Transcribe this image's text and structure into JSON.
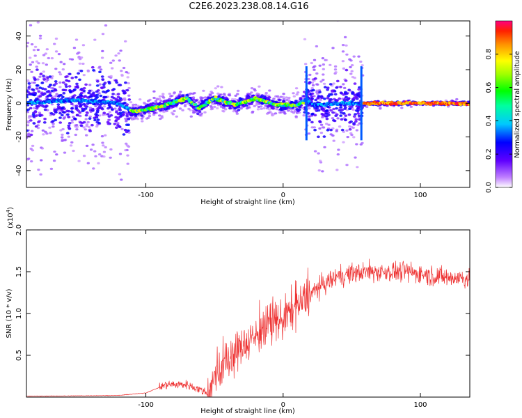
{
  "title": "C2E6.2023.238.08.14.G16",
  "chart_data": [
    {
      "type": "heatmap",
      "xlabel": "Height of straight line (km)",
      "ylabel": "Frequency (Hz)",
      "xlim": [
        -187,
        136
      ],
      "ylim": [
        -50,
        49
      ],
      "x_ticks": [
        "-100",
        "0",
        "100"
      ],
      "y_ticks": [
        "-40",
        "-20",
        "0",
        "20",
        "40"
      ],
      "colorbar": {
        "label": "Normalized spectral amplitude",
        "range": [
          0,
          1
        ],
        "ticks": [
          "0.0",
          "0.2",
          "0.4",
          "0.6",
          "0.8"
        ]
      },
      "ridge": [
        {
          "x": -187,
          "y": 0
        },
        {
          "x": -150,
          "y": 2
        },
        {
          "x": -120,
          "y": 0
        },
        {
          "x": -110,
          "y": -5
        },
        {
          "x": -95,
          "y": -3
        },
        {
          "x": -85,
          "y": -1
        },
        {
          "x": -70,
          "y": 3
        },
        {
          "x": -62,
          "y": -3
        },
        {
          "x": -50,
          "y": 3
        },
        {
          "x": -35,
          "y": -1
        },
        {
          "x": -20,
          "y": 3
        },
        {
          "x": -5,
          "y": -1
        },
        {
          "x": 10,
          "y": -1
        },
        {
          "x": 17,
          "y": 2
        },
        {
          "x": 22,
          "y": -1
        },
        {
          "x": 40,
          "y": 0
        },
        {
          "x": 57,
          "y": 0
        },
        {
          "x": 65,
          "y": 0
        },
        {
          "x": 136,
          "y": 0
        }
      ]
    },
    {
      "type": "line",
      "xlabel": "Height of straight line (km)",
      "ylabel": "SNR (10 * v/v)",
      "y_multiplier": "(x10",
      "y_multiplier_exp": "4",
      "y_multiplier_close": ")",
      "xlim": [
        -187,
        136
      ],
      "ylim": [
        0,
        2.0
      ],
      "x_ticks": [
        "-100",
        "0",
        "100"
      ],
      "y_ticks": [
        "0.5",
        "1.0",
        "1.5",
        "2.0"
      ],
      "series": [
        {
          "color": "#ee3333",
          "envelope": [
            {
              "x": -187,
              "y": 0.01
            },
            {
              "x": -120,
              "y": 0.02
            },
            {
              "x": -100,
              "y": 0.05
            },
            {
              "x": -85,
              "y": 0.15
            },
            {
              "x": -70,
              "y": 0.15
            },
            {
              "x": -55,
              "y": 0.05
            },
            {
              "x": -45,
              "y": 0.35
            },
            {
              "x": -30,
              "y": 0.6
            },
            {
              "x": -15,
              "y": 0.8
            },
            {
              "x": 0,
              "y": 0.95
            },
            {
              "x": 15,
              "y": 1.15
            },
            {
              "x": 25,
              "y": 1.3
            },
            {
              "x": 40,
              "y": 1.45
            },
            {
              "x": 60,
              "y": 1.5
            },
            {
              "x": 90,
              "y": 1.5
            },
            {
              "x": 120,
              "y": 1.43
            },
            {
              "x": 136,
              "y": 1.42
            }
          ]
        }
      ]
    }
  ]
}
